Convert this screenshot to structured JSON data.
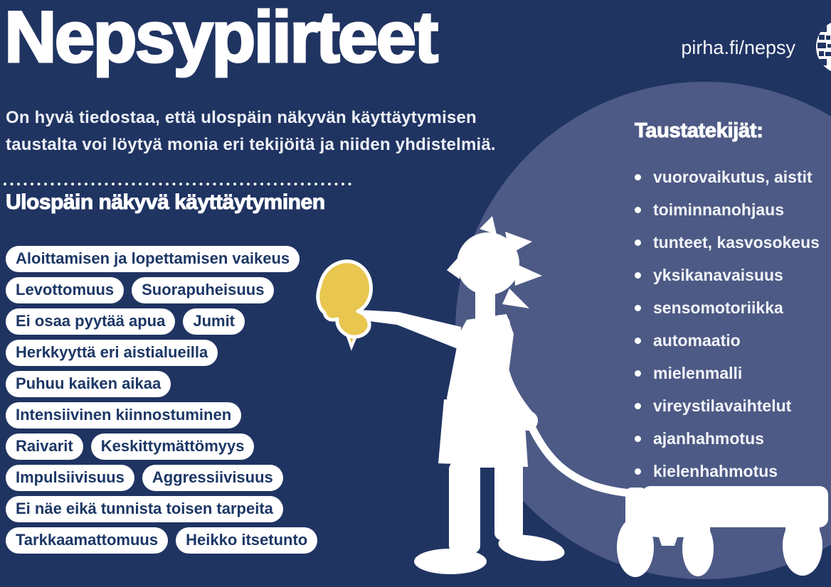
{
  "header": {
    "title": "Nepsypiirteet",
    "url": "pirha.fi/nepsy",
    "intro_line1": "On hyvä tiedostaa, että ulospäin näkyvän käyttäytymisen",
    "intro_line2": "taustalta voi löytyä monia eri tekijöitä ja niiden yhdistelmiä."
  },
  "behavior": {
    "heading": "Ulospäin näkyvä käyttäytyminen",
    "pill_rows": [
      [
        "Aloittamisen ja lopettamisen vaikeus"
      ],
      [
        "Levottomuus",
        "Suorapuheisuus"
      ],
      [
        "Ei osaa pyytää apua",
        "Jumit"
      ],
      [
        "Herkkyyttä eri aistialueilla"
      ],
      [
        "Puhuu kaiken aikaa"
      ],
      [
        "Intensiivinen kiinnostuminen"
      ],
      [
        "Raivarit",
        "Keskittymättömyys"
      ],
      [
        "Impulsiivisuus",
        "Aggressiivisuus"
      ],
      [
        "Ei näe eikä tunnista toisen tarpeita"
      ],
      [
        "Tarkkaamattomuus",
        "Heikko itsetunto"
      ]
    ]
  },
  "factors": {
    "heading": "Taustatekijät:",
    "items": [
      "vuorovaikutus, aistit",
      "toiminnanohjaus",
      "tunteet, kasvosokeus",
      "yksikanavaisuus",
      "sensomotoriikka",
      "automaatio",
      "mielenmalli",
      "vireystilavaihtelut",
      "ajanhahmotus",
      "kielenhahmotus"
    ]
  },
  "illustration": {
    "description": "White silhouette of a child holding a yellow butterfly and pulling a wagon",
    "icons": [
      "qr-code-icon",
      "butterfly-illustration",
      "child-silhouette",
      "wagon-silhouette"
    ]
  },
  "colors": {
    "background_navy": "#203462",
    "circle_slate": "#4d5a85",
    "pill_text_navy": "#1c3766",
    "butterfly_yellow": "#e8c64f",
    "white": "#ffffff"
  }
}
